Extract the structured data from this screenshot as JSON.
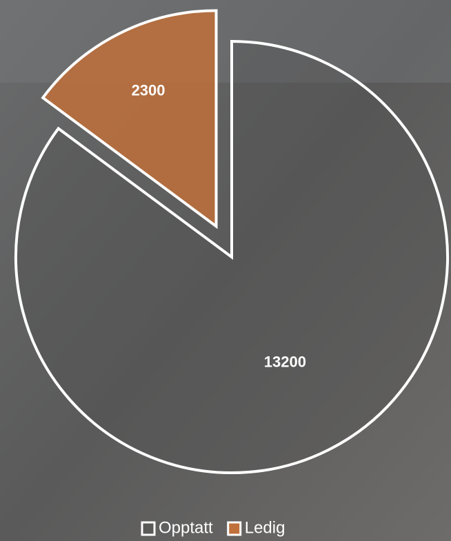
{
  "chart_data": {
    "type": "pie",
    "categories": [
      "Opptatt",
      "Ledig"
    ],
    "values": [
      13200,
      2300
    ],
    "colors": [
      "#4f4f4f",
      "#c0703a"
    ],
    "exploded": [
      false,
      true
    ]
  }
}
